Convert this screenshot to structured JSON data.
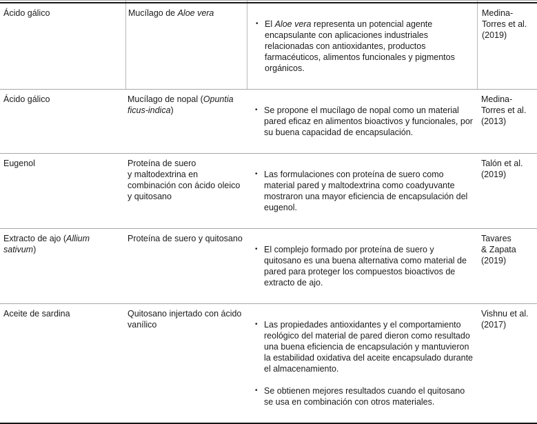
{
  "table": {
    "bullet_glyph": "•",
    "rows": [
      {
        "compound": [
          {
            "text": "Ácido gálico"
          }
        ],
        "wall_material": [
          {
            "text": "Mucílago de "
          },
          {
            "text": "Aloe vera",
            "italic": true
          }
        ],
        "findings": [
          [
            {
              "text": "El "
            },
            {
              "text": "Aloe vera",
              "italic": true
            },
            {
              "text": " representa un potencial agente encapsulante con aplicaciones industriales relacionadas con antioxidantes, productos farmacéuticos, alimentos funcionales y pigmentos orgánicos."
            }
          ]
        ],
        "reference": [
          {
            "text": "Medina-\nTorres et al.\n(2019)"
          }
        ]
      },
      {
        "compound": [
          {
            "text": "Ácido gálico"
          }
        ],
        "wall_material": [
          {
            "text": "Mucílago de nopal ("
          },
          {
            "text": "Opuntia ficus-indica",
            "italic": true
          },
          {
            "text": ")"
          }
        ],
        "findings": [
          [
            {
              "text": "Se propone el mucílago de nopal como un material pared eficaz en alimentos bioactivos y funcionales, por su buena capacidad de encapsulación."
            }
          ]
        ],
        "reference": [
          {
            "text": "Medina-\nTorres et al.\n(2013)"
          }
        ]
      },
      {
        "compound": [
          {
            "text": "Eugenol"
          }
        ],
        "wall_material": [
          {
            "text": "Proteína de suero\ny maltodextrina en\ncombinación con ácido oleico\ny quitosano"
          }
        ],
        "findings": [
          [
            {
              "text": "Las formulaciones con proteína de suero como material pared y maltodextrina como coadyuvante mostraron una mayor eficiencia de encapsulación del eugenol."
            }
          ]
        ],
        "reference": [
          {
            "text": "Talón et al.\n(2019)"
          }
        ]
      },
      {
        "compound": [
          {
            "text": "Extracto de ajo ("
          },
          {
            "text": "Allium sativum",
            "italic": true
          },
          {
            "text": ")"
          }
        ],
        "wall_material": [
          {
            "text": "Proteína de suero y quitosano"
          }
        ],
        "findings": [
          [
            {
              "text": "El complejo formado por proteína de suero y quitosano es una buena alternativa como material de pared para proteger los compuestos bioactivos de extracto de ajo."
            }
          ]
        ],
        "reference": [
          {
            "text": "Tavares\n& Zapata\n(2019)"
          }
        ]
      },
      {
        "compound": [
          {
            "text": "Aceite de sardina"
          }
        ],
        "wall_material": [
          {
            "text": "Quitosano injertado con ácido\nvanílico"
          }
        ],
        "findings": [
          [
            {
              "text": "Las propiedades antioxidantes y el comportamiento reológico del material de pared dieron como resultado una buena eficiencia de encapsulación y mantuvieron la estabilidad oxidativa del aceite encapsulado durante el almacenamiento."
            }
          ],
          [
            {
              "text": "Se obtienen mejores resultados cuando el quitosano se usa en combinación con otros materiales."
            }
          ]
        ],
        "reference": [
          {
            "text": "Vishnu et al.\n(2017)"
          }
        ]
      }
    ]
  }
}
